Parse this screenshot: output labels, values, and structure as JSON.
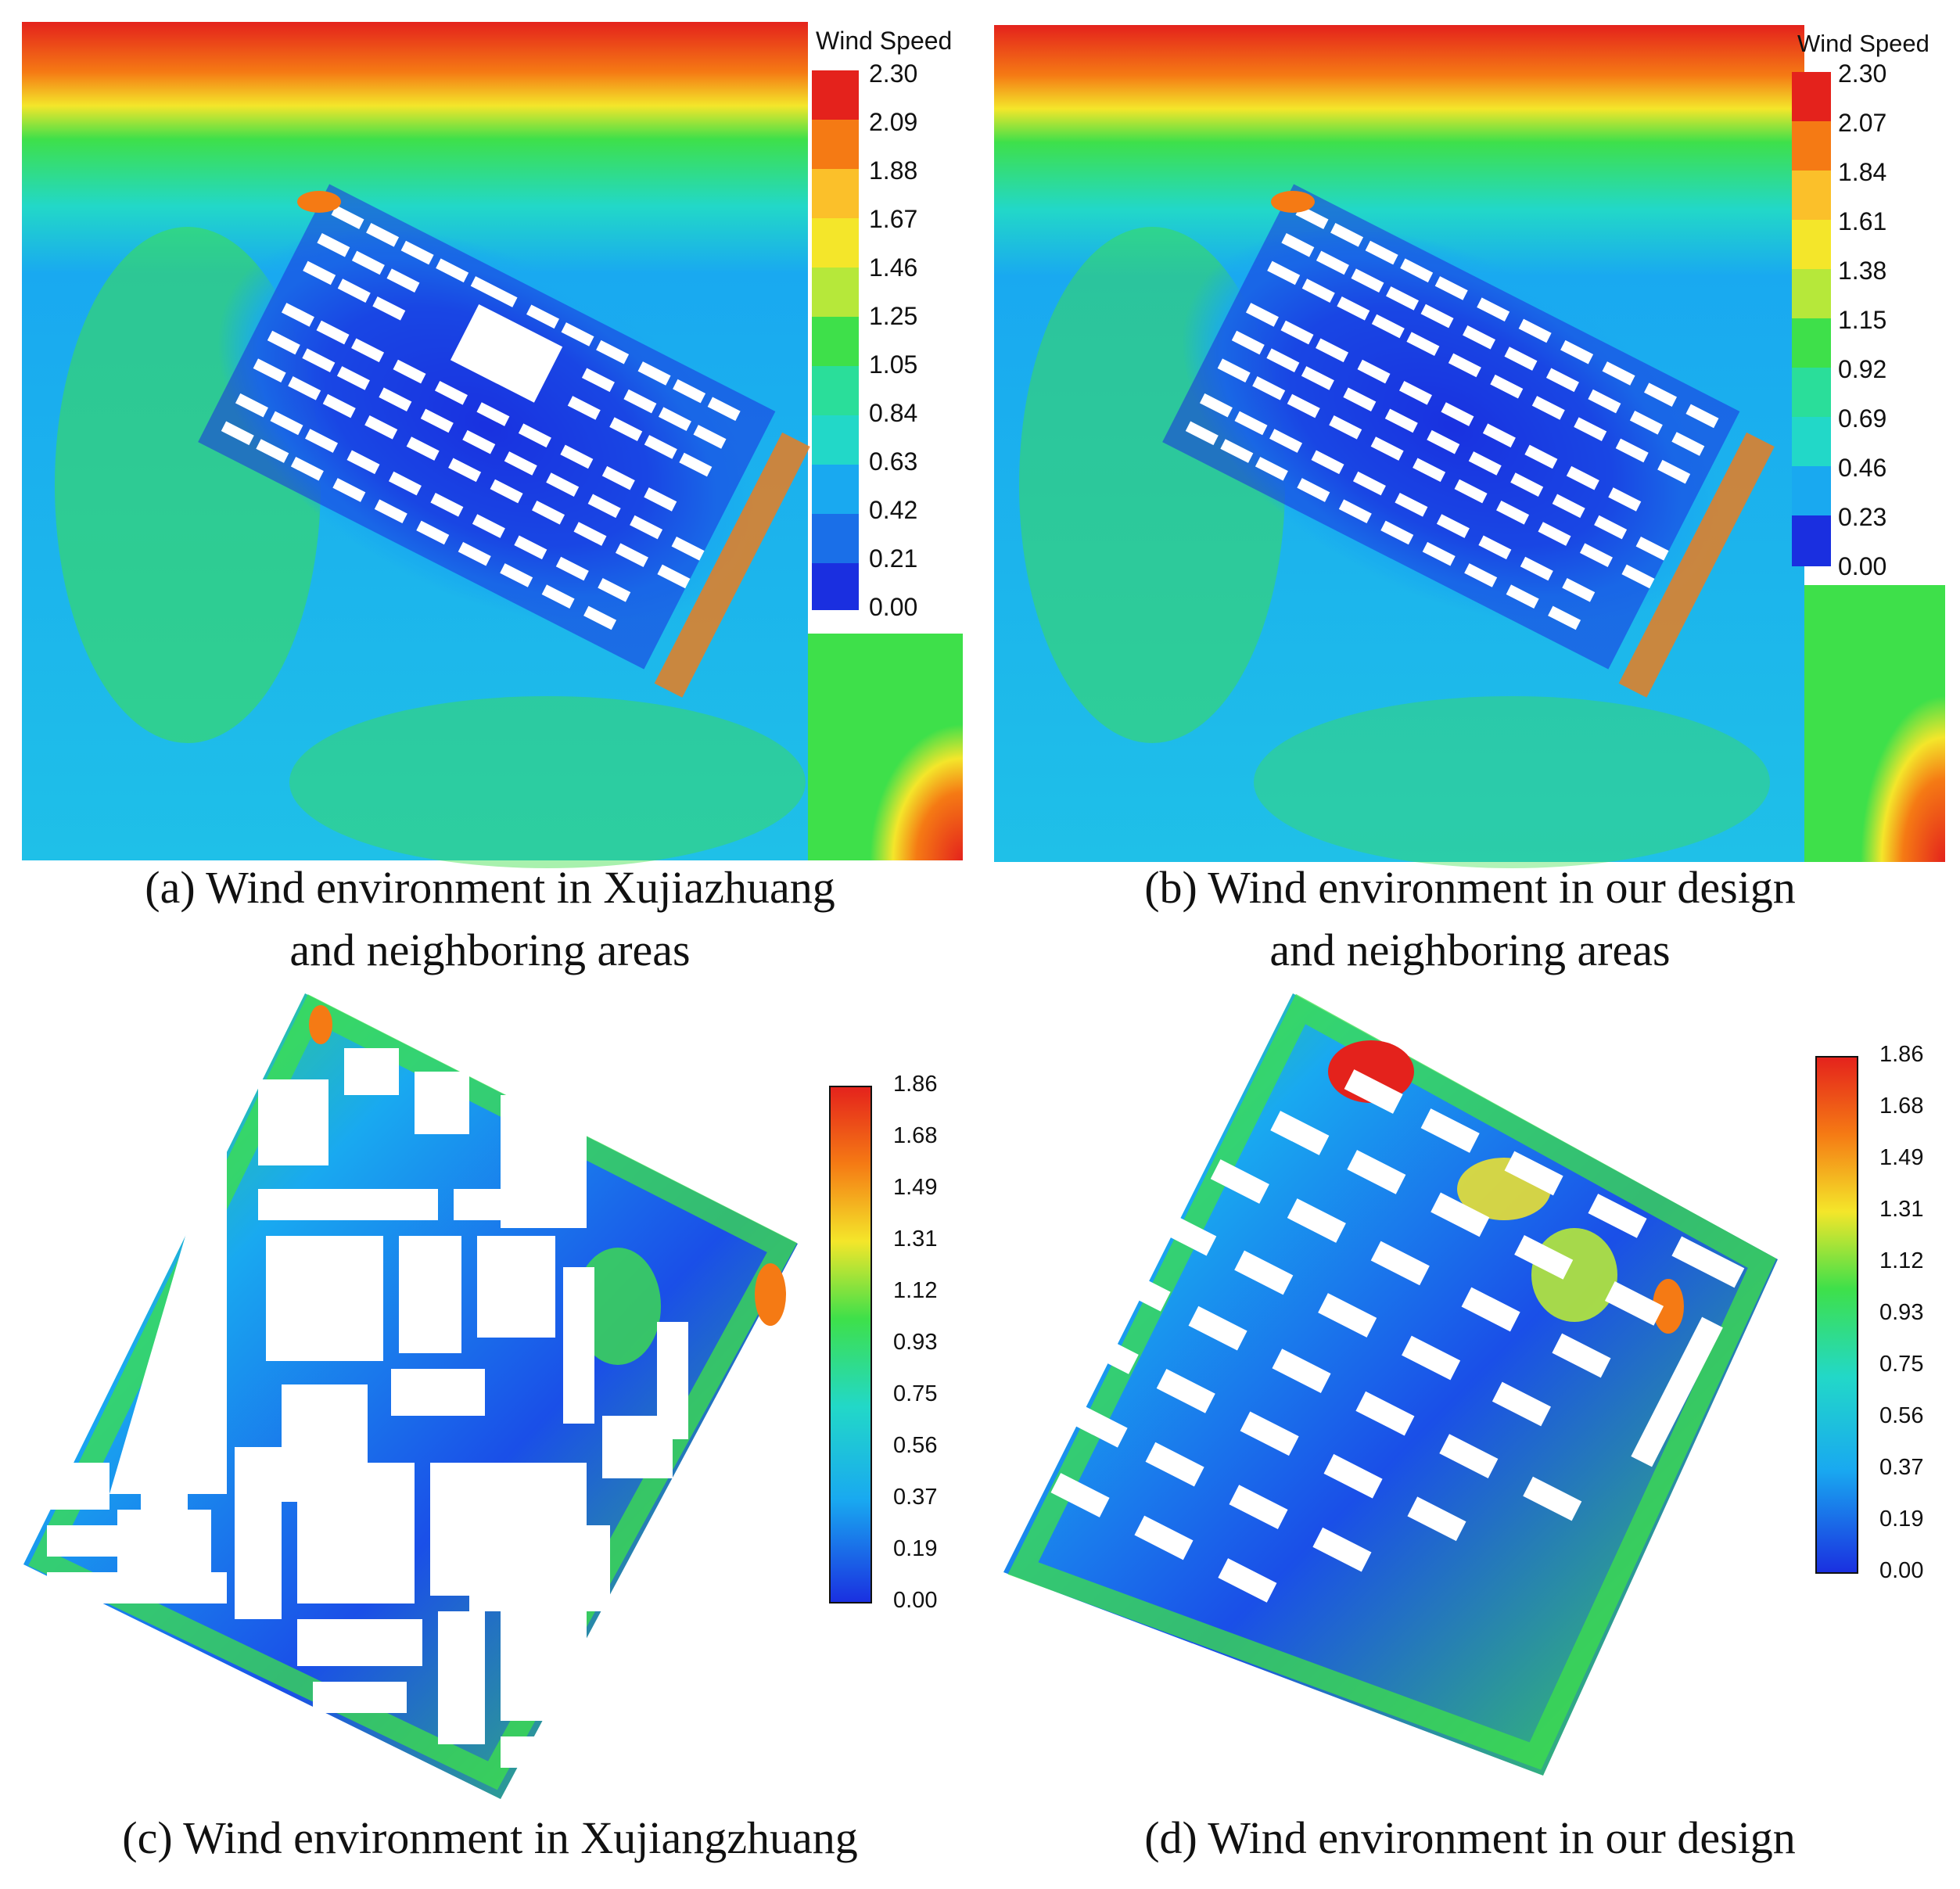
{
  "panels": [
    {
      "id": "a",
      "caption_line1": "(a) Wind environment in Xujiazhuang",
      "caption_line2": "and neighboring areas",
      "legend_title": "Wind Speed",
      "legend_ticks": [
        "2.30",
        "2.09",
        "1.88",
        "1.67",
        "1.46",
        "1.25",
        "1.05",
        "0.84",
        "0.63",
        "0.42",
        "0.21",
        "0.00"
      ],
      "legend_style": "stepped"
    },
    {
      "id": "b",
      "caption_line1": "(b) Wind environment in our design",
      "caption_line2": "and neighboring areas",
      "legend_title": "Wind Speed",
      "legend_ticks": [
        "2.30",
        "2.07",
        "1.84",
        "1.61",
        "1.38",
        "1.15",
        "0.92",
        "0.69",
        "0.46",
        "0.23",
        "0.00"
      ],
      "legend_style": "stepped"
    },
    {
      "id": "c",
      "caption_line1": "(c) Wind environment in Xujiangzhuang",
      "legend_ticks": [
        "1.86",
        "1.68",
        "1.49",
        "1.31",
        "1.12",
        "0.93",
        "0.75",
        "0.56",
        "0.37",
        "0.19",
        "0.00"
      ],
      "legend_style": "gradient"
    },
    {
      "id": "d",
      "caption_line1": "(d) Wind environment in our design",
      "legend_ticks": [
        "1.86",
        "1.68",
        "1.49",
        "1.31",
        "1.12",
        "0.93",
        "0.75",
        "0.56",
        "0.37",
        "0.19",
        "0.00"
      ],
      "legend_style": "gradient"
    }
  ],
  "colors": {
    "low": "#1a2fe0",
    "mid_low": "#19a9f0",
    "mid": "#22d8c8",
    "mid_high": "#3ee04a",
    "high_mid": "#f4e62a",
    "high": "#f57a14",
    "max": "#e4221c"
  }
}
